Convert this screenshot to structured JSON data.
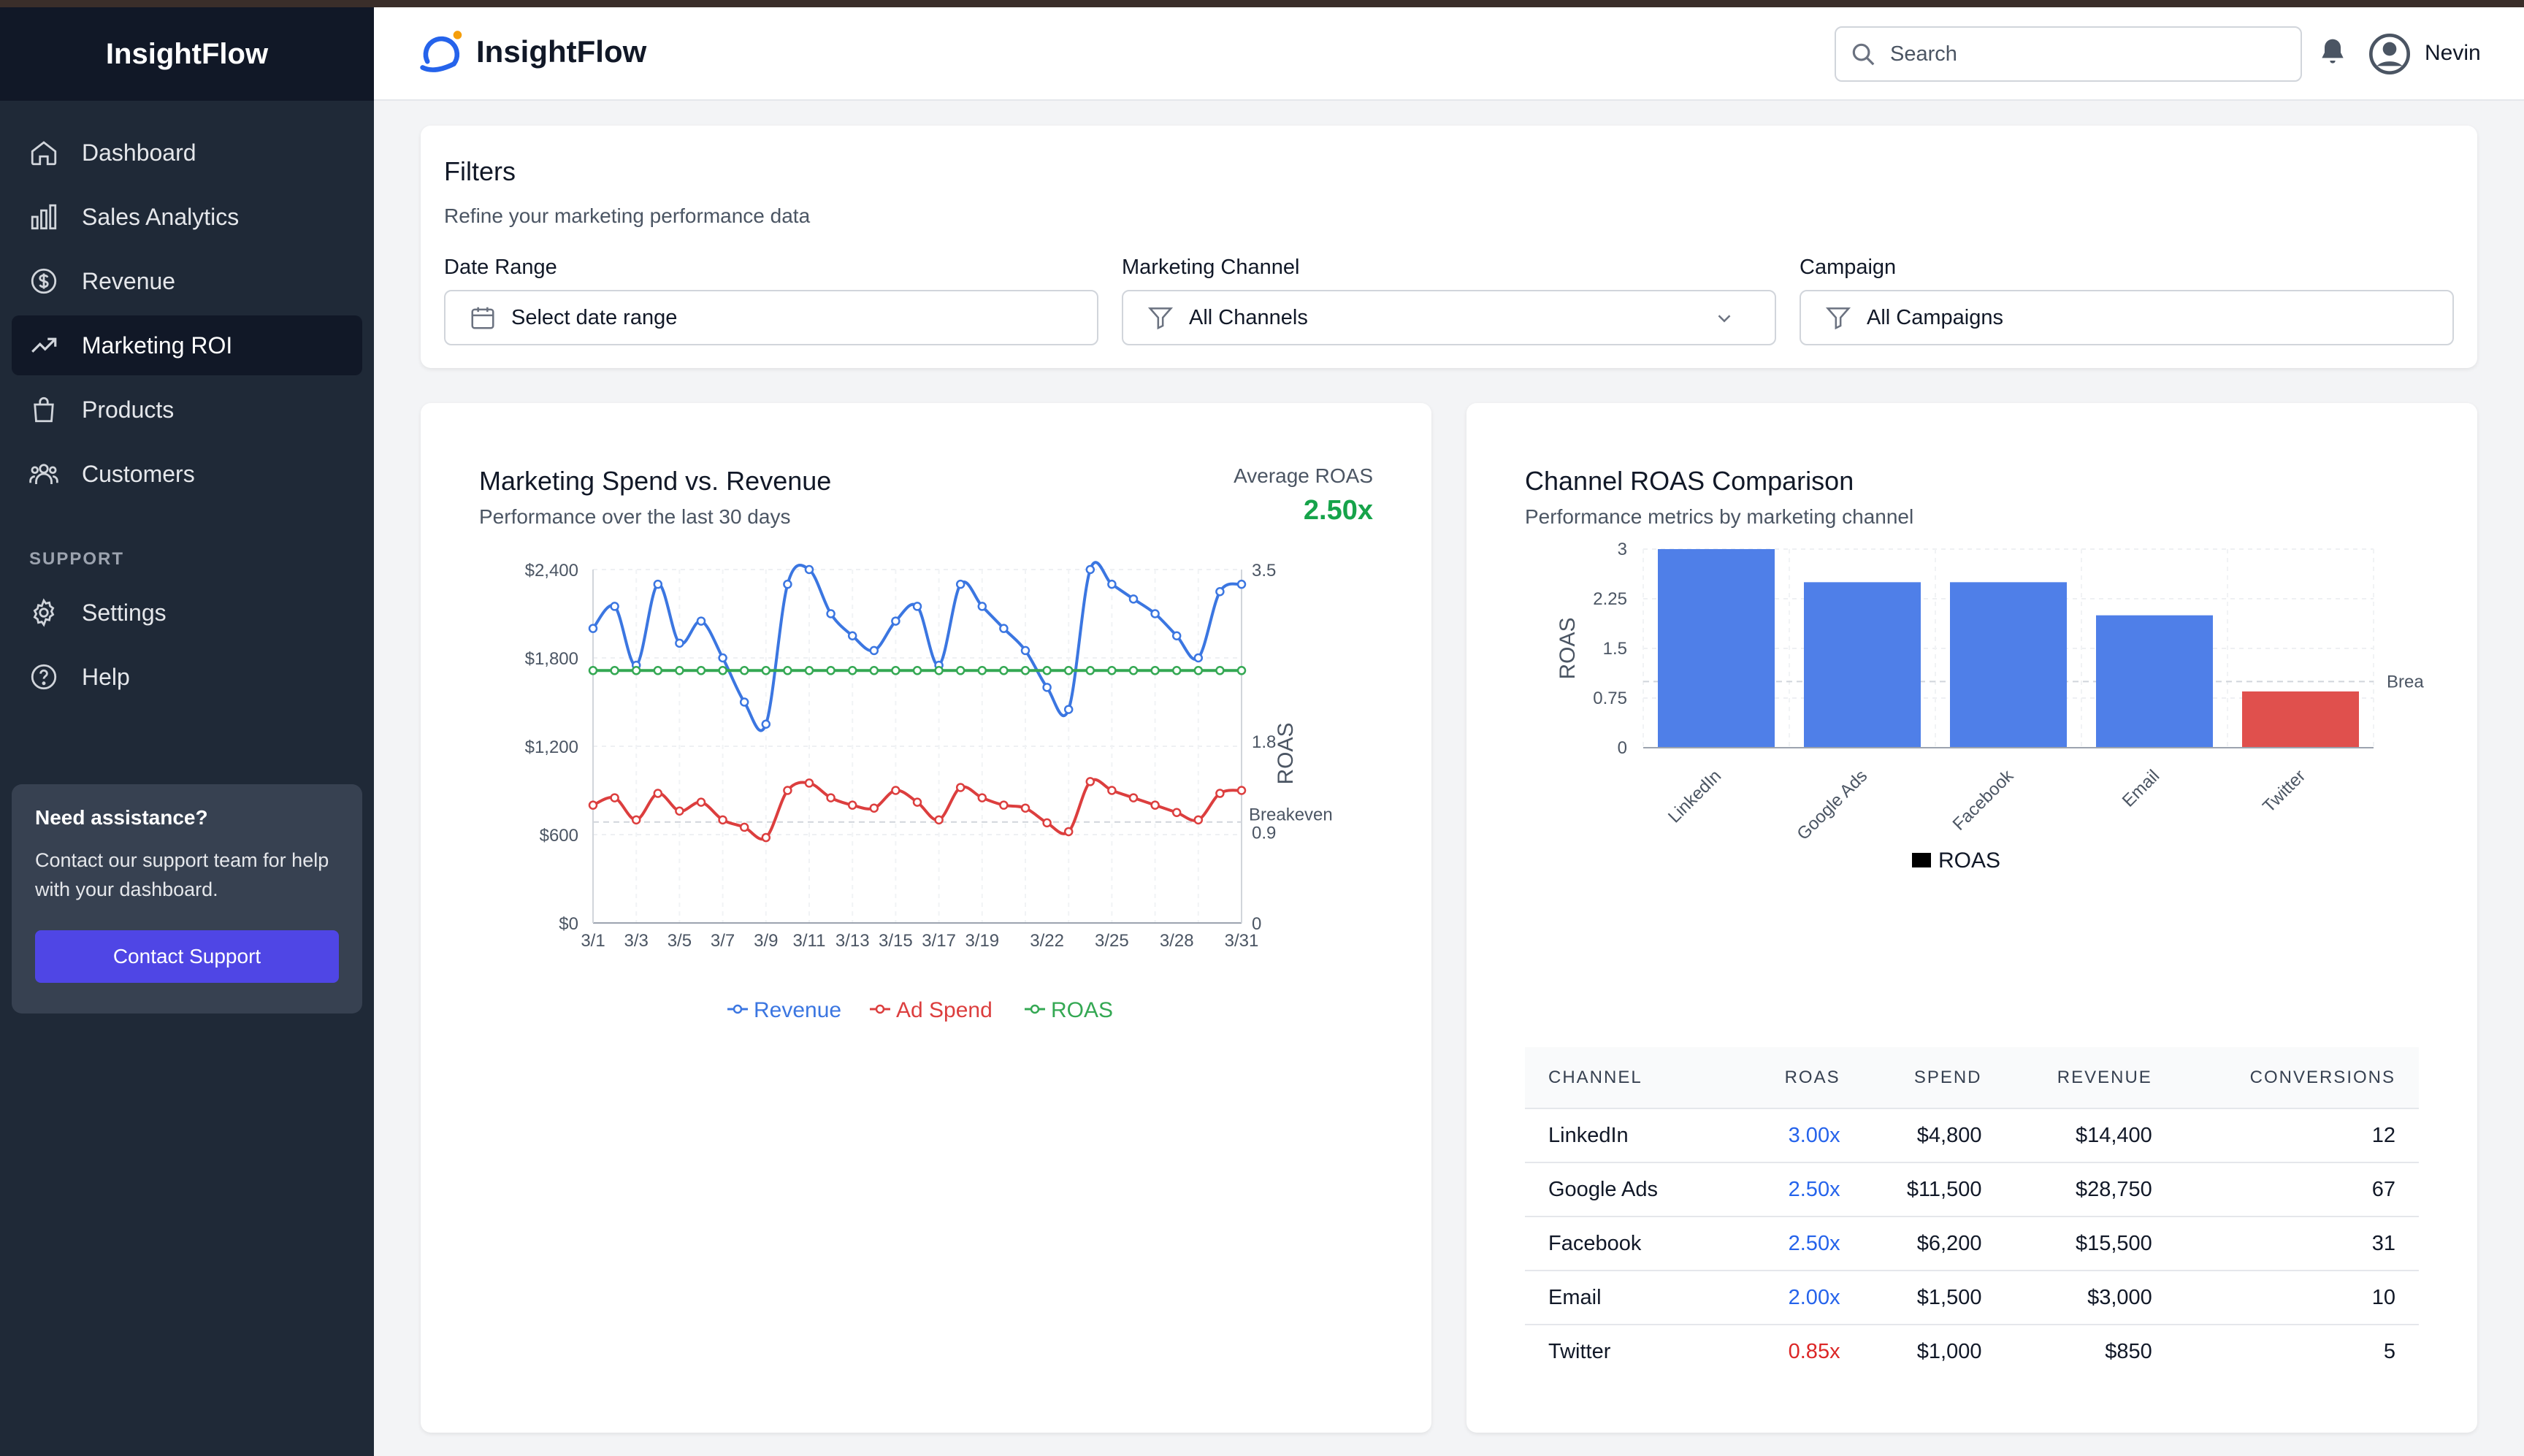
{
  "app": {
    "name": "InsightFlow"
  },
  "sidebar": {
    "brand": "InsightFlow",
    "items": [
      {
        "label": "Dashboard",
        "icon": "home-icon"
      },
      {
        "label": "Sales Analytics",
        "icon": "bar-chart-icon"
      },
      {
        "label": "Revenue",
        "icon": "dollar-icon"
      },
      {
        "label": "Marketing ROI",
        "icon": "trending-up-icon",
        "active": true
      },
      {
        "label": "Products",
        "icon": "shopping-bag-icon"
      },
      {
        "label": "Customers",
        "icon": "users-icon"
      }
    ],
    "support_heading": "SUPPORT",
    "support_items": [
      {
        "label": "Settings",
        "icon": "gear-icon"
      },
      {
        "label": "Help",
        "icon": "help-circle-icon"
      }
    ],
    "help_card": {
      "title": "Need assistance?",
      "text": "Contact our support team for help with your dashboard.",
      "button": "Contact Support"
    }
  },
  "header": {
    "logo_text": "InsightFlow",
    "search_placeholder": "Search",
    "user_name": "Nevin"
  },
  "filters": {
    "title": "Filters",
    "subtitle": "Refine your marketing performance data",
    "date_range": {
      "label": "Date Range",
      "value": "Select date range"
    },
    "channel": {
      "label": "Marketing Channel",
      "value": "All Channels"
    },
    "campaign": {
      "label": "Campaign",
      "value": "All Campaigns"
    }
  },
  "spend_chart": {
    "title": "Marketing Spend vs. Revenue",
    "subtitle": "Performance over the last 30 days",
    "avg_label": "Average ROAS",
    "avg_value": "2.50x"
  },
  "roas_chart": {
    "title": "Channel ROAS Comparison",
    "subtitle": "Performance metrics by marketing channel"
  },
  "chart_data": [
    {
      "type": "line",
      "title": "Marketing Spend vs. Revenue",
      "x": [
        "3/1",
        "3/2",
        "3/3",
        "3/4",
        "3/5",
        "3/6",
        "3/7",
        "3/8",
        "3/9",
        "3/10",
        "3/11",
        "3/12",
        "3/13",
        "3/14",
        "3/15",
        "3/16",
        "3/17",
        "3/18",
        "3/19",
        "3/20",
        "3/21",
        "3/22",
        "3/23",
        "3/24",
        "3/25",
        "3/26",
        "3/27",
        "3/28",
        "3/29",
        "3/30",
        "3/31"
      ],
      "xticks": [
        "3/1",
        "3/3",
        "3/5",
        "3/7",
        "3/9",
        "3/11",
        "3/13",
        "3/15",
        "3/17",
        "3/19",
        "3/22",
        "3/25",
        "3/28",
        "3/31"
      ],
      "series": [
        {
          "name": "Revenue",
          "axis": "left",
          "color": "#3b76e1",
          "values": [
            2000,
            2150,
            1750,
            2300,
            1900,
            2050,
            1800,
            1500,
            1350,
            2300,
            2400,
            2100,
            1950,
            1850,
            2050,
            2150,
            1750,
            2300,
            2150,
            2000,
            1850,
            1600,
            1450,
            2400,
            2300,
            2200,
            2100,
            1950,
            1800,
            2250,
            2300
          ]
        },
        {
          "name": "Ad Spend",
          "axis": "left",
          "color": "#dc3e3e",
          "values": [
            800,
            850,
            700,
            880,
            760,
            820,
            700,
            650,
            580,
            900,
            950,
            850,
            800,
            780,
            900,
            820,
            700,
            920,
            850,
            800,
            780,
            680,
            620,
            960,
            900,
            850,
            800,
            750,
            700,
            880,
            900
          ]
        },
        {
          "name": "ROAS",
          "axis": "right",
          "color": "#34a853",
          "values": [
            2.5,
            2.5,
            2.5,
            2.5,
            2.5,
            2.5,
            2.5,
            2.5,
            2.5,
            2.5,
            2.5,
            2.5,
            2.5,
            2.5,
            2.5,
            2.5,
            2.5,
            2.5,
            2.5,
            2.5,
            2.5,
            2.5,
            2.5,
            2.5,
            2.5,
            2.5,
            2.5,
            2.5,
            2.5,
            2.5,
            2.5
          ]
        }
      ],
      "left_axis": {
        "ticks": [
          "$0",
          "$600",
          "$1,200",
          "$1,800",
          "$2,400"
        ],
        "values": [
          0,
          600,
          1200,
          1800,
          2400
        ],
        "ylim": [
          0,
          2400
        ]
      },
      "right_axis": {
        "label": "ROAS",
        "ticks": [
          "0",
          "0.9",
          "1.8",
          "3.5"
        ],
        "values": [
          0,
          0.9,
          1.8,
          3.5
        ],
        "ylim": [
          0,
          3.5
        ]
      },
      "reference_line": {
        "label": "Breakeven",
        "value": 1.0
      },
      "legend": [
        "Revenue",
        "Ad Spend",
        "ROAS"
      ]
    },
    {
      "type": "bar",
      "title": "Channel ROAS Comparison",
      "categories": [
        "LinkedIn",
        "Google Ads",
        "Facebook",
        "Email",
        "Twitter"
      ],
      "values": [
        3.0,
        2.5,
        2.5,
        2.0,
        0.85
      ],
      "colors": [
        "#4f7fe8",
        "#4f7fe8",
        "#4f7fe8",
        "#4f7fe8",
        "#e0504d"
      ],
      "ylabel": "ROAS",
      "yticks": [
        "0",
        "0.75",
        "1.5",
        "2.25",
        "3"
      ],
      "ylim": [
        0,
        3
      ],
      "reference_line": {
        "label": "Brea",
        "value": 1.0
      },
      "legend": [
        "ROAS"
      ]
    }
  ],
  "table": {
    "headers": [
      "CHANNEL",
      "ROAS",
      "SPEND",
      "REVENUE",
      "CONVERSIONS"
    ],
    "rows": [
      {
        "channel": "LinkedIn",
        "roas": "3.00x",
        "spend": "$4,800",
        "revenue": "$14,400",
        "conversions": "12",
        "roas_color": "#2563eb"
      },
      {
        "channel": "Google Ads",
        "roas": "2.50x",
        "spend": "$11,500",
        "revenue": "$28,750",
        "conversions": "67",
        "roas_color": "#2563eb"
      },
      {
        "channel": "Facebook",
        "roas": "2.50x",
        "spend": "$6,200",
        "revenue": "$15,500",
        "conversions": "31",
        "roas_color": "#2563eb"
      },
      {
        "channel": "Email",
        "roas": "2.00x",
        "spend": "$1,500",
        "revenue": "$3,000",
        "conversions": "10",
        "roas_color": "#2563eb"
      },
      {
        "channel": "Twitter",
        "roas": "0.85x",
        "spend": "$1,000",
        "revenue": "$850",
        "conversions": "5",
        "roas_color": "#dc2626"
      }
    ]
  }
}
